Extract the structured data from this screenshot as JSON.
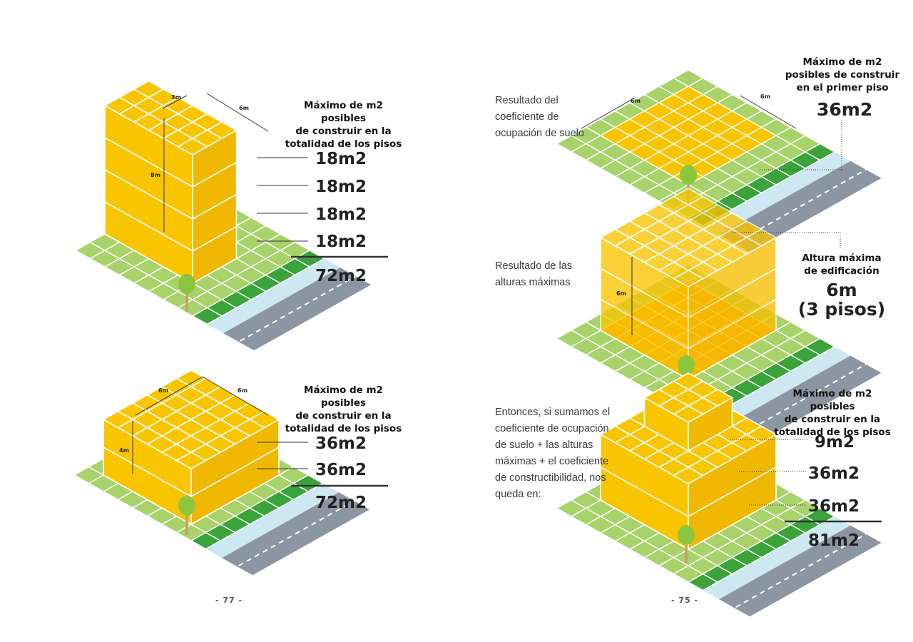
{
  "colors": {
    "lawn": "#a8d26a",
    "lawn_dark": "#3aa33a",
    "building": "#f9c400",
    "building_side": "#f0b800",
    "sidewalk": "#cde8f2",
    "road": "#8c96a2",
    "tree": "#8cc63f",
    "trunk": "#c8a060"
  },
  "page_left": {
    "number": "- 77 -",
    "top": {
      "dim_depth": "3m",
      "dim_width": "6m",
      "dim_height": "8m",
      "heading": [
        "Máximo de m2 posibles",
        "de construir en la",
        "totalidad de los pisos"
      ],
      "floors": [
        "18m2",
        "18m2",
        "18m2",
        "18m2"
      ],
      "total": "72m2"
    },
    "bottom": {
      "dim_depth": "6m",
      "dim_width": "6m",
      "dim_height": "4m",
      "heading": [
        "Máximo de m2 posibles",
        "de construir en la",
        "totalidad de los pisos"
      ],
      "floors": [
        "36m2",
        "36m2"
      ],
      "total": "72m2"
    }
  },
  "page_right": {
    "number": "- 75 -",
    "first": {
      "description": [
        "Resultado del",
        "coeficiente de",
        "ocupación de suelo"
      ],
      "dim_left": "6m",
      "dim_right": "6m",
      "heading": [
        "Máximo de m2",
        "posibles de construir",
        "en el primer piso"
      ],
      "value": "36m2"
    },
    "second": {
      "description": [
        "Resultado de las",
        "alturas máximas"
      ],
      "dim_height": "6m",
      "heading": [
        "Altura máxima",
        "de edificación"
      ],
      "value_lines": [
        "6m",
        "(3 pisos)"
      ]
    },
    "third": {
      "description": [
        "Entonces, si sumamos el",
        "coeficiente de ocupación",
        "de suelo + las alturas",
        "máximas + el coeficiente",
        "de constructibilidad, nos",
        "queda en:"
      ],
      "heading": [
        "Máximo de m2 posibles",
        "de construir en la",
        "totalidad de los pisos"
      ],
      "floors": [
        "9m2",
        "36m2",
        "36m2"
      ],
      "total": "81m2"
    }
  }
}
